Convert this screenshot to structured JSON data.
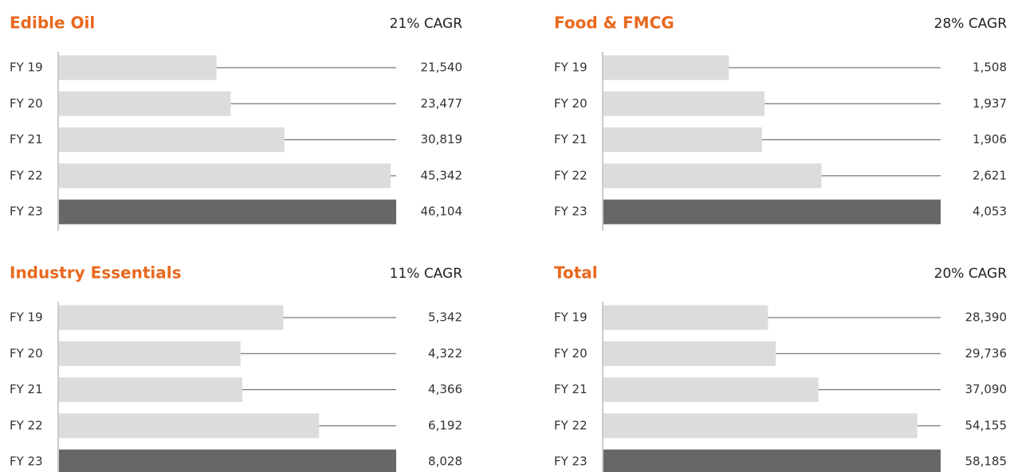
{
  "chart_data": [
    {
      "type": "bar",
      "title": "Edible Oil",
      "subtitle": "21% CAGR",
      "categories": [
        "FY 19",
        "FY 20",
        "FY 21",
        "FY 22",
        "FY 23"
      ],
      "values": [
        21540,
        23477,
        30819,
        45342,
        46104
      ],
      "value_labels": [
        "21,540",
        "23,477",
        "30,819",
        "45,342",
        "46,104"
      ],
      "colors": [
        "#dcdcdc",
        "#dcdcdc",
        "#dcdcdc",
        "#dcdcdc",
        "#676767"
      ]
    },
    {
      "type": "bar",
      "title": "Food & FMCG",
      "subtitle": "28% CAGR",
      "categories": [
        "FY 19",
        "FY 20",
        "FY 21",
        "FY 22",
        "FY 23"
      ],
      "values": [
        1508,
        1937,
        1906,
        2621,
        4053
      ],
      "value_labels": [
        "1,508",
        "1,937",
        "1,906",
        "2,621",
        "4,053"
      ],
      "colors": [
        "#dcdcdc",
        "#dcdcdc",
        "#dcdcdc",
        "#dcdcdc",
        "#676767"
      ]
    },
    {
      "type": "bar",
      "title": "Industry Essentials",
      "subtitle": "11% CAGR",
      "categories": [
        "FY 19",
        "FY 20",
        "FY 21",
        "FY 22",
        "FY 23"
      ],
      "values": [
        5342,
        4322,
        4366,
        6192,
        8028
      ],
      "value_labels": [
        "5,342",
        "4,322",
        "4,366",
        "6,192",
        "8,028"
      ],
      "colors": [
        "#dcdcdc",
        "#dcdcdc",
        "#dcdcdc",
        "#dcdcdc",
        "#676767"
      ]
    },
    {
      "type": "bar",
      "title": "Total",
      "subtitle": "20% CAGR",
      "categories": [
        "FY 19",
        "FY 20",
        "FY 21",
        "FY 22",
        "FY 23"
      ],
      "values": [
        28390,
        29736,
        37090,
        54155,
        58185
      ],
      "value_labels": [
        "28,390",
        "29,736",
        "37,090",
        "54,155",
        "58,185"
      ],
      "colors": [
        "#dcdcdc",
        "#dcdcdc",
        "#dcdcdc",
        "#dcdcdc",
        "#676767"
      ]
    }
  ]
}
